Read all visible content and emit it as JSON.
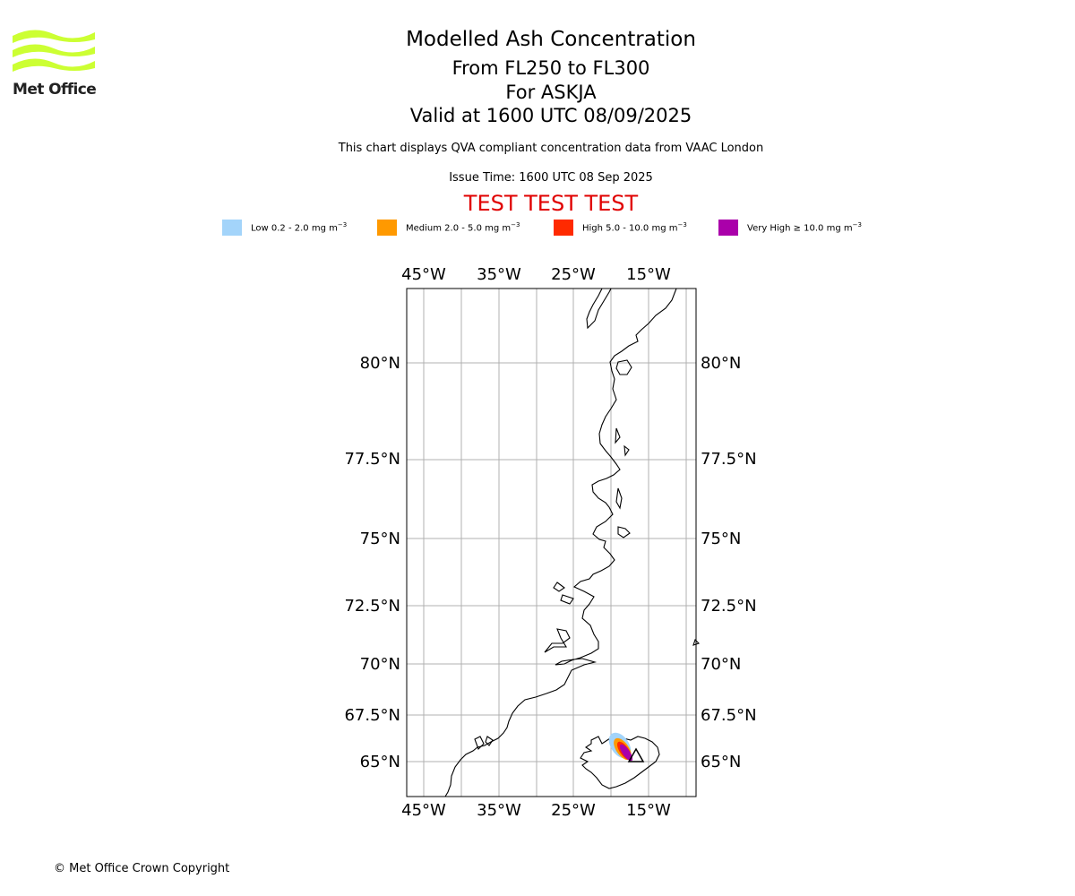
{
  "logo": {
    "text": "Met Office",
    "color": "#ccff33"
  },
  "title": {
    "line1": "Modelled Ash Concentration",
    "line2": "From FL250 to FL300",
    "line3": "For ASKJA",
    "line4": "Valid at 1600 UTC 08/09/2025"
  },
  "subtitle": "This chart displays QVA compliant concentration data from VAAC London",
  "issue_time": "Issue Time: 1600 UTC 08 Sep 2025",
  "test_banner": "TEST TEST TEST",
  "legend": [
    {
      "label": "Low 0.2 - 2.0 mg m",
      "color": "#a3d4fa"
    },
    {
      "label": "Medium 2.0 - 5.0 mg m",
      "color": "#ff9900"
    },
    {
      "label": "High 5.0 - 10.0 mg m",
      "color": "#ff2a00"
    },
    {
      "label": "Very High ≥ 10.0 mg m",
      "color": "#aa00aa"
    }
  ],
  "legend_unit_exponent": "−3",
  "map": {
    "lon_labels": [
      "45°W",
      "35°W",
      "25°W",
      "15°W"
    ],
    "lat_labels": [
      "80°N",
      "77.5°N",
      "75°N",
      "72.5°N",
      "70°N",
      "67.5°N",
      "65°N"
    ],
    "volcano": "ASKJA"
  },
  "copyright": "© Met Office Crown Copyright"
}
